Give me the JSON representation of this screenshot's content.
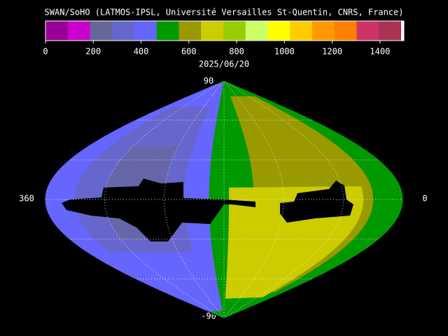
{
  "header": {
    "title": "SWAN/SoHO (LATMOS-IPSL, Université Versailles St-Quentin, CNRS, France)",
    "date": "2025/06/20"
  },
  "colorbar": {
    "lim": [
      0,
      1500
    ],
    "ticks": [
      0,
      200,
      400,
      600,
      800,
      1000,
      1200,
      1400
    ],
    "colors": [
      "#990099",
      "#cc00cc",
      "#666699",
      "#6666cc",
      "#6666ff",
      "#009900",
      "#999900",
      "#cccc00",
      "#99cc00",
      "#ccff66",
      "#ffff00",
      "#ffcc00",
      "#ff9900",
      "#ff7f00",
      "#cc3366",
      "#aa3355",
      "#ffffff"
    ]
  },
  "map": {
    "lat_top": 90,
    "lat_bottom": -90,
    "lon_left": 360,
    "lon_right": 0
  }
}
